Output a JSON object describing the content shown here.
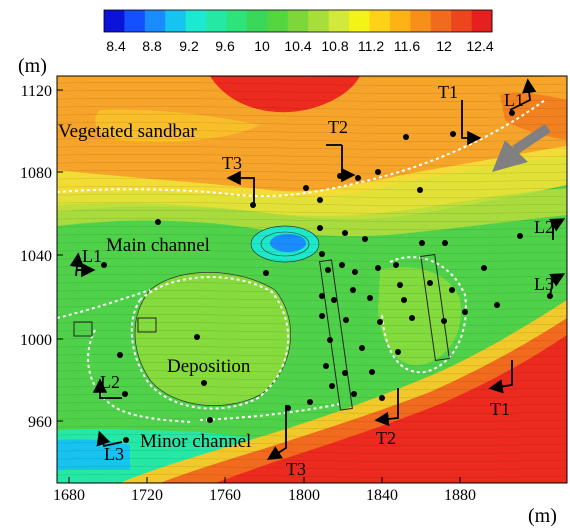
{
  "colorbar": {
    "colors": [
      "#0a14d8",
      "#1450ff",
      "#1a8cff",
      "#17c3ef",
      "#1de8d2",
      "#25e8a5",
      "#2de37a",
      "#3ad85a",
      "#55d640",
      "#7ed73a",
      "#a8de3a",
      "#d2e83a",
      "#f5f218",
      "#ffd21a",
      "#fdb216",
      "#f7901a",
      "#f26a1e",
      "#ec461f",
      "#e6201e"
    ],
    "labels": [
      "8.4",
      "8.8",
      "9.2",
      "9.6",
      "10",
      "10.4",
      "10.8",
      "11.2",
      "11.6",
      "12",
      "12.4"
    ]
  },
  "axes": {
    "x_unit": "(m)",
    "y_unit": "(m)",
    "x_ticks": [
      "1680",
      "1720",
      "1760",
      "1800",
      "1840",
      "1880"
    ],
    "y_ticks": [
      "1120",
      "1080",
      "1040",
      "1000",
      "960"
    ]
  },
  "annotations": {
    "vegetated_sandbar": "Vegetated sandbar",
    "main_channel": "Main channel",
    "deposition": "Deposition",
    "minor_channel": "Minor channel"
  },
  "sections": {
    "T1_top": "T1",
    "T2_top": "T2",
    "T3_top": "T3",
    "L1_right": "L1",
    "L2_right": "L2",
    "L3_right": "L3",
    "L1_left": "L1",
    "L2_left": "L2",
    "L3_left": "L3",
    "T1_bottom": "T1",
    "T2_bottom": "T2",
    "T3_bottom": "T3"
  },
  "colors": {
    "sandbar": "#f7a52a",
    "high_bed": "#ec2a1e",
    "channel": "#4fd24a",
    "deep_pool": "#1ac7e6",
    "flow_arrow": "#808080"
  }
}
